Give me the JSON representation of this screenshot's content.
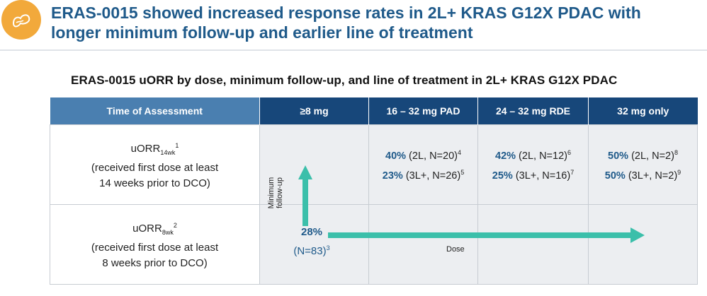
{
  "header": {
    "title": "ERAS-0015 showed increased response rates in 2L+ KRAS G12X PDAC with longer minimum follow-up and earlier line of treatment",
    "logo_icon": "pancreas-icon",
    "accent_color": "#1f5a8a",
    "logo_color": "#f2a93b"
  },
  "subtitle": "ERAS-0015 uORR by dose, minimum follow-up, and line of treatment in 2L+ KRAS G12X PDAC",
  "table": {
    "columns": [
      "Time of Assessment",
      "≥8 mg",
      "16 – 32 mg PAD",
      "24 – 32 mg RDE",
      "32 mg only"
    ],
    "rows": [
      {
        "label_main": "uORR",
        "label_sub": "14wk",
        "label_sup": "1",
        "label_line2": "(received first dose at least",
        "label_line3": "14 weeks prior to DCO)",
        "cells": [
          null,
          {
            "a_pct": "40%",
            "a_text": " (2L, N=20)",
            "a_sup": "4",
            "b_pct": "23%",
            "b_text": " (3L+, N=26)",
            "b_sup": "5"
          },
          {
            "a_pct": "42%",
            "a_text": " (2L, N=12)",
            "a_sup": "6",
            "b_pct": "25%",
            "b_text": " (3L+, N=16)",
            "b_sup": "7"
          },
          {
            "a_pct": "50%",
            "a_text": " (2L, N=2)",
            "a_sup": "8",
            "b_pct": "50%",
            "b_text": " (3L+, N=2)",
            "b_sup": "9"
          }
        ]
      },
      {
        "label_main": "uORR",
        "label_sub": "8wk",
        "label_sup": "2",
        "label_line2": "(received first dose at least",
        "label_line3": "8 weeks prior to DCO)"
      }
    ]
  },
  "overlay": {
    "y_axis_label": "Minimum follow-up",
    "x_axis_label": "Dose",
    "overall_pct": "28%",
    "overall_n": "(N=83)",
    "overall_sup": "3",
    "arrow_color": "#3bbfaa"
  }
}
